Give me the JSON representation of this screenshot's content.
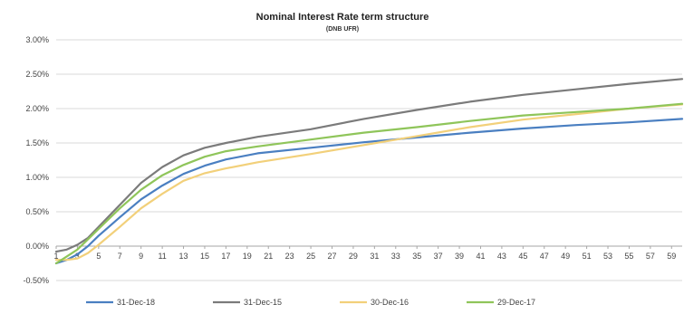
{
  "chart_data": {
    "type": "line",
    "title": "Nominal Interest Rate term structure",
    "subtitle": "(DNB UFR)",
    "xlabel": "",
    "ylabel": "",
    "x_range": [
      1,
      60
    ],
    "ylim": [
      -0.5,
      3.0
    ],
    "y_ticks": [
      "3.00%",
      "2.50%",
      "2.00%",
      "1.50%",
      "1.00%",
      "0.50%",
      "0.00%",
      "-0.50%"
    ],
    "y_tick_values": [
      3.0,
      2.5,
      2.0,
      1.5,
      1.0,
      0.5,
      0.0,
      -0.5
    ],
    "x_ticks": [
      "1",
      "3",
      "5",
      "7",
      "9",
      "11",
      "13",
      "15",
      "17",
      "19",
      "21",
      "23",
      "25",
      "27",
      "29",
      "31",
      "33",
      "35",
      "37",
      "39",
      "41",
      "43",
      "45",
      "47",
      "49",
      "51",
      "53",
      "55",
      "57",
      "59"
    ],
    "grid": true,
    "legend_position": "bottom",
    "series": [
      {
        "name": "31-Dec-18",
        "color": "#4a7fc1",
        "x": [
          1,
          2,
          3,
          4,
          5,
          7,
          9,
          11,
          13,
          15,
          17,
          20,
          25,
          30,
          35,
          40,
          45,
          50,
          55,
          60
        ],
        "values": [
          -0.25,
          -0.2,
          -0.12,
          0.0,
          0.15,
          0.42,
          0.68,
          0.88,
          1.05,
          1.17,
          1.26,
          1.35,
          1.43,
          1.51,
          1.58,
          1.65,
          1.71,
          1.76,
          1.8,
          1.85
        ]
      },
      {
        "name": "31-Dec-15",
        "color": "#7b7b7b",
        "x": [
          1,
          2,
          3,
          4,
          5,
          7,
          9,
          11,
          13,
          15,
          17,
          20,
          25,
          30,
          35,
          40,
          45,
          50,
          55,
          60
        ],
        "values": [
          -0.08,
          -0.05,
          0.02,
          0.12,
          0.28,
          0.6,
          0.92,
          1.15,
          1.32,
          1.43,
          1.5,
          1.59,
          1.7,
          1.85,
          1.98,
          2.1,
          2.2,
          2.28,
          2.36,
          2.43
        ]
      },
      {
        "name": "30-Dec-16",
        "color": "#f2d07a",
        "x": [
          1,
          2,
          3,
          4,
          5,
          7,
          9,
          11,
          13,
          15,
          17,
          20,
          25,
          30,
          35,
          40,
          45,
          50,
          55,
          60
        ],
        "values": [
          -0.2,
          -0.2,
          -0.18,
          -0.1,
          0.02,
          0.28,
          0.55,
          0.76,
          0.95,
          1.06,
          1.13,
          1.22,
          1.34,
          1.47,
          1.6,
          1.73,
          1.84,
          1.92,
          2.0,
          2.06
        ]
      },
      {
        "name": "29-Dec-17",
        "color": "#8fc55a",
        "x": [
          1,
          2,
          3,
          4,
          5,
          7,
          9,
          11,
          13,
          15,
          17,
          20,
          25,
          30,
          35,
          40,
          45,
          50,
          55,
          60
        ],
        "values": [
          -0.25,
          -0.15,
          -0.05,
          0.1,
          0.25,
          0.55,
          0.82,
          1.03,
          1.18,
          1.3,
          1.38,
          1.45,
          1.55,
          1.65,
          1.73,
          1.82,
          1.9,
          1.95,
          2.0,
          2.07
        ]
      }
    ]
  }
}
